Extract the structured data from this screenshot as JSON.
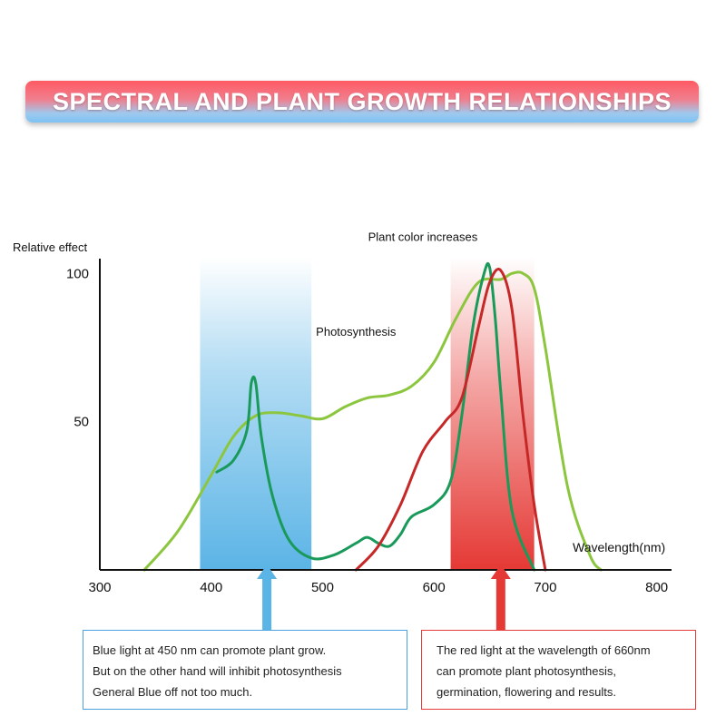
{
  "banner": {
    "title": "SPECTRAL AND PLANT GROWTH RELATIONSHIPS"
  },
  "colors": {
    "accent_red": "#e53935",
    "accent_blue": "#5bb4e6",
    "photosynthesis_curve": "#8cc63f",
    "chlorophyll_curve": "#1a9a5a",
    "plant_color_curve": "#c62828"
  },
  "chart_data": {
    "type": "line",
    "ylabel": "Relative effect",
    "xlabel": "Wavelength(nm)",
    "xlim": [
      300,
      850
    ],
    "ylim": [
      0,
      105
    ],
    "x_ticks": [
      300,
      400,
      500,
      600,
      700,
      800
    ],
    "y_ticks": [
      50,
      100
    ],
    "grid": false,
    "bands": [
      {
        "name": "blue",
        "x_start": 390,
        "x_end": 490,
        "color": "#5bb4e6"
      },
      {
        "name": "red",
        "x_start": 615,
        "x_end": 690,
        "color": "#e53935"
      }
    ],
    "arrows": [
      {
        "x": 450,
        "color": "#5bb4e6"
      },
      {
        "x": 660,
        "color": "#e53935"
      }
    ],
    "annotations": [
      {
        "text": "Photosynthesis",
        "x": 530,
        "y": 79
      },
      {
        "text": "Plant color increases",
        "x": 590,
        "y": 111
      }
    ],
    "series": [
      {
        "color": "#8cc63f",
        "x": [
          340,
          370,
          400,
          420,
          440,
          460,
          480,
          500,
          520,
          540,
          560,
          580,
          600,
          620,
          640,
          660,
          670,
          680,
          690,
          700,
          720,
          740,
          750
        ],
        "y": [
          0,
          13,
          32,
          45,
          52,
          53,
          52,
          51,
          55,
          58,
          59,
          62,
          70,
          85,
          97,
          98,
          100,
          100,
          95,
          75,
          28,
          5,
          0
        ]
      },
      {
        "color": "#1a9a5a",
        "x": [
          405,
          420,
          432,
          436,
          440,
          445,
          455,
          470,
          490,
          510,
          530,
          540,
          550,
          560,
          570,
          580,
          600,
          615,
          625,
          635,
          645,
          650,
          655,
          660,
          670,
          690
        ],
        "y": [
          33,
          37,
          47,
          63,
          63,
          45,
          25,
          10,
          4,
          5,
          9,
          11,
          9,
          8,
          12,
          18,
          22,
          30,
          52,
          82,
          100,
          102,
          85,
          60,
          20,
          0
        ]
      },
      {
        "color": "#c62828",
        "x": [
          530,
          550,
          570,
          590,
          610,
          625,
          640,
          650,
          660,
          670,
          680,
          690,
          700
        ],
        "y": [
          0,
          8,
          22,
          40,
          50,
          58,
          82,
          97,
          101,
          88,
          52,
          22,
          0
        ]
      }
    ]
  },
  "notes": {
    "blue": {
      "line1": "Blue light at 450 nm can promote plant grow.",
      "line2": "But on the other hand will inhibit photosynthesis",
      "line3": "General Blue off not too much."
    },
    "red": {
      "line1": "The red light at the wavelength of 660nm",
      "line2": "can promote plant photosynthesis,",
      "line3": "germination, flowering and results."
    }
  }
}
